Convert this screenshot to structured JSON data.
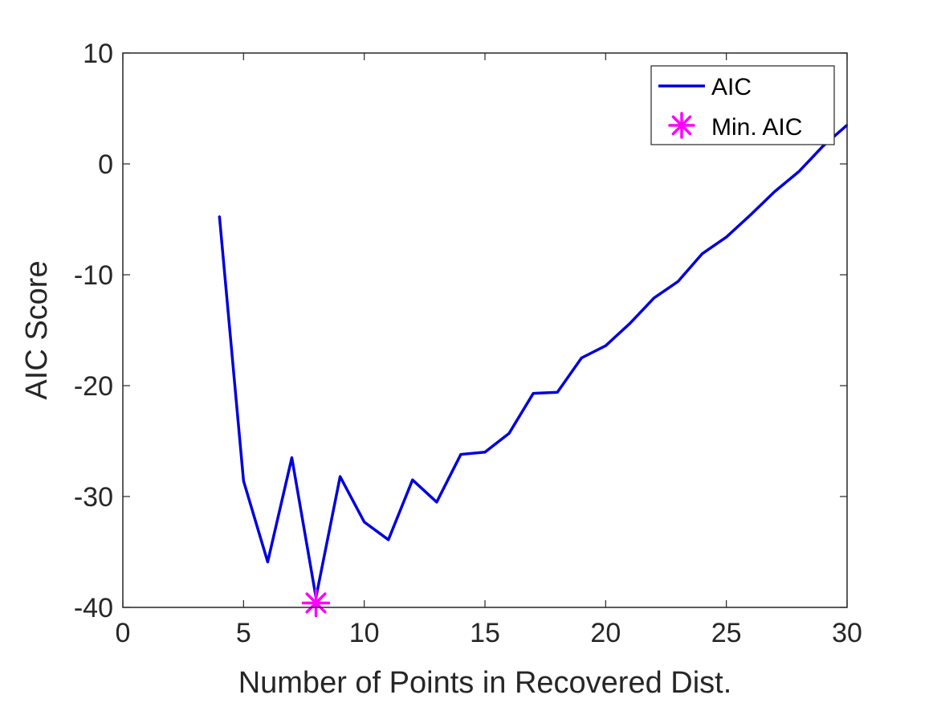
{
  "chart_data": {
    "type": "line",
    "title": "",
    "xlabel": "Number of Points in Recovered Dist.",
    "ylabel": "AIC Score",
    "xlim": [
      0,
      30
    ],
    "ylim": [
      -40,
      10
    ],
    "xticks": [
      0,
      5,
      10,
      15,
      20,
      25,
      30
    ],
    "yticks": [
      -40,
      -30,
      -20,
      -10,
      0,
      10
    ],
    "grid": false,
    "legend_position": "top-right",
    "series": [
      {
        "name": "AIC",
        "type": "line",
        "color": "#0000dd",
        "x": [
          4,
          5,
          6,
          7,
          8,
          9,
          10,
          11,
          12,
          13,
          14,
          15,
          16,
          17,
          18,
          19,
          20,
          21,
          22,
          23,
          24,
          25,
          26,
          27,
          28,
          29,
          30
        ],
        "y": [
          -4.7,
          -28.6,
          -35.9,
          -26.5,
          -39.1,
          -28.2,
          -32.3,
          -33.9,
          -28.5,
          -30.5,
          -26.2,
          -26.0,
          -24.3,
          -20.7,
          -20.6,
          -17.5,
          -16.4,
          -14.4,
          -12.1,
          -10.6,
          -8.1,
          -6.6,
          -4.6,
          -2.5,
          -0.7,
          1.6,
          3.5
        ]
      },
      {
        "name": "Min. AIC",
        "type": "marker",
        "marker": "asterisk",
        "color": "#ff00ff",
        "x": [
          8
        ],
        "y": [
          -39.6
        ]
      }
    ]
  }
}
